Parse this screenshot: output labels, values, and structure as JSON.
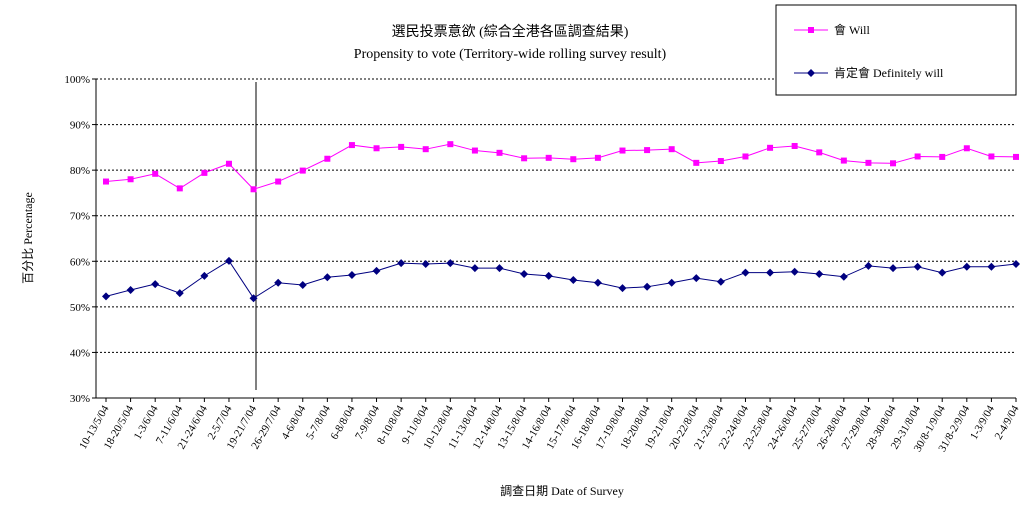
{
  "chart_data": {
    "type": "line",
    "title": "選民投票意欲 (綜合全港各區調查結果)",
    "subtitle": "Propensity to vote (Territory-wide rolling survey result)",
    "xlabel": "調查日期 Date of Survey",
    "ylabel": "百分比 Percentage",
    "ylim": [
      30,
      100
    ],
    "yticks": [
      "30%",
      "40%",
      "50%",
      "60%",
      "70%",
      "80%",
      "90%",
      "100%"
    ],
    "grid": true,
    "legend_position": "top-right",
    "categories": [
      "10-13/5/04",
      "18-20/5/04",
      "1-3/6/04",
      "7-11/6/04",
      "21-24/6/04",
      "2-5/7/04",
      "19-21/7/04",
      "26-29/7/04",
      "4-6/8/04",
      "5-7/8/04",
      "6-8/8/04",
      "7-9/8/04",
      "8-10/8/04",
      "9-11/8/04",
      "10-12/8/04",
      "11-13/8/04",
      "12-14/8/04",
      "13-15/8/04",
      "14-16/8/04",
      "15-17/8/04",
      "16-18/8/04",
      "17-19/8/04",
      "18-20/8/04",
      "19-21/8/04",
      "20-22/8/04",
      "21-23/8/04",
      "22-24/8/04",
      "23-25/8/04",
      "24-26/8/04",
      "25-27/8/04",
      "26-28/8/04",
      "27-29/8/04",
      "28-30/8/04",
      "29-31/8/04",
      "30/8-1/9/04",
      "31/8-2/9/04",
      "1-3/9/04",
      "2-4/9/04"
    ],
    "series": [
      {
        "name": "會 Will",
        "color": "#ff00ff",
        "marker": "square",
        "values": [
          77.5,
          78,
          79.2,
          76,
          79.4,
          81.4,
          75.8,
          77.5,
          79.9,
          82.5,
          85.5,
          84.8,
          85.1,
          84.6,
          85.7,
          84.3,
          83.8,
          82.6,
          82.7,
          82.4,
          82.7,
          84.3,
          84.4,
          84.6,
          81.6,
          82,
          83,
          84.9,
          85.3,
          83.9,
          82.1,
          81.6,
          81.5,
          83,
          82.9,
          84.8,
          83,
          82.9
        ]
      },
      {
        "name": "肯定會 Definitely will",
        "color": "#000080",
        "marker": "diamond",
        "values": [
          52.3,
          53.7,
          55,
          53,
          56.8,
          60.1,
          51.9,
          55.3,
          54.8,
          56.5,
          57,
          57.9,
          59.6,
          59.4,
          59.6,
          58.5,
          58.5,
          57.2,
          56.8,
          55.9,
          55.3,
          54.1,
          54.4,
          55.3,
          56.3,
          55.5,
          57.5,
          57.5,
          57.7,
          57.2,
          56.6,
          59,
          58.5,
          58.8,
          57.5,
          58.8,
          58.8,
          59.4
        ]
      }
    ]
  }
}
